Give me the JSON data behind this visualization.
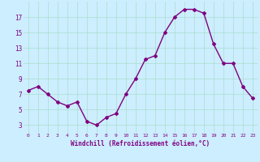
{
  "x": [
    0,
    1,
    2,
    3,
    4,
    5,
    6,
    7,
    8,
    9,
    10,
    11,
    12,
    13,
    14,
    15,
    16,
    17,
    18,
    19,
    20,
    21,
    22,
    23
  ],
  "y": [
    7.5,
    8.0,
    7.0,
    6.0,
    5.5,
    6.0,
    3.5,
    3.0,
    4.0,
    4.5,
    7.0,
    9.0,
    11.5,
    12.0,
    15.0,
    17.0,
    18.0,
    18.0,
    17.5,
    13.5,
    11.0,
    11.0,
    8.0,
    6.5
  ],
  "line_color": "#800080",
  "marker": "D",
  "marker_size": 2,
  "bg_color": "#cceeff",
  "grid_color": "#aaddcc",
  "xlabel": "Windchill (Refroidissement éolien,°C)",
  "xlabel_color": "#800080",
  "tick_color": "#800080",
  "ylim": [
    2,
    19
  ],
  "yticks": [
    3,
    5,
    7,
    9,
    11,
    13,
    15,
    17
  ],
  "xticks": [
    0,
    1,
    2,
    3,
    4,
    5,
    6,
    7,
    8,
    9,
    10,
    11,
    12,
    13,
    14,
    15,
    16,
    17,
    18,
    19,
    20,
    21,
    22,
    23
  ],
  "line_width": 1.0
}
